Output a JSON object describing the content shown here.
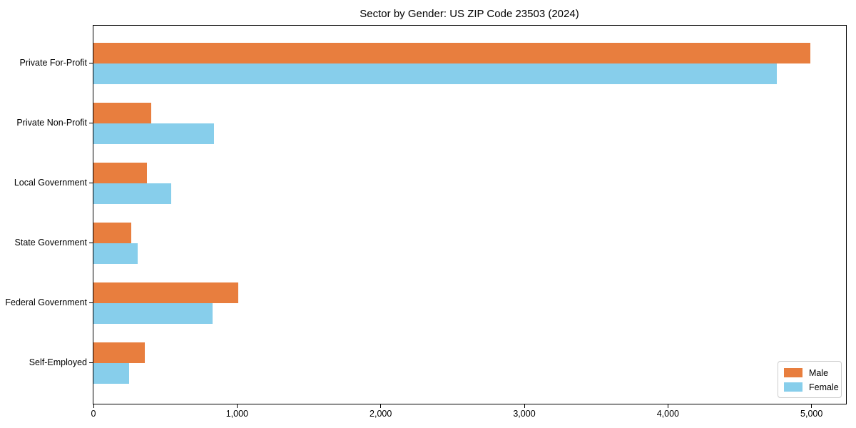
{
  "chart_data": {
    "type": "bar",
    "orientation": "horizontal",
    "title": "Sector by Gender: US ZIP Code 23503 (2024)",
    "categories": [
      "Private For-Profit",
      "Private Non-Profit",
      "Local Government",
      "State Government",
      "Federal Government",
      "Self-Employed"
    ],
    "series": [
      {
        "name": "Male",
        "color": "#e87e3e",
        "values": [
          4990,
          400,
          370,
          265,
          1010,
          355
        ]
      },
      {
        "name": "Female",
        "color": "#87ceeb",
        "values": [
          4760,
          840,
          540,
          310,
          830,
          250
        ]
      }
    ],
    "xlabel": "",
    "ylabel": "",
    "x_ticks": [
      0,
      1000,
      2000,
      3000,
      4000,
      5000
    ],
    "x_tick_labels": [
      "0",
      "1,000",
      "2,000",
      "3,000",
      "4,000",
      "5,000"
    ],
    "xlim": [
      0,
      5240
    ],
    "grid": false,
    "legend": {
      "position": "lower right",
      "entries": [
        {
          "label": "Male",
          "color": "#e87e3e"
        },
        {
          "label": "Female",
          "color": "#87ceeb"
        }
      ]
    }
  }
}
